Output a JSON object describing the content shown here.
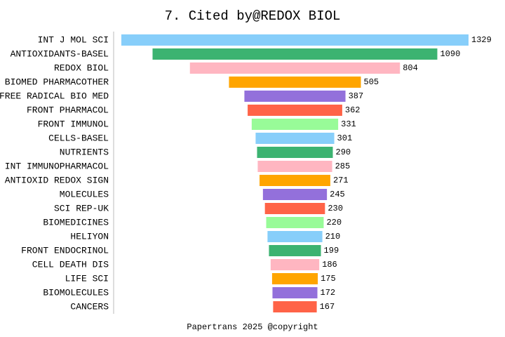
{
  "chart_data": {
    "type": "bar",
    "orientation": "horizontal",
    "align": "center",
    "title": "7. Cited by@REDOX BIOL",
    "footer": "Papertrans 2025 @copyright",
    "categories": [
      "INT J MOL SCI",
      "ANTIOXIDANTS-BASEL",
      "REDOX BIOL",
      "BIOMED PHARMACOTHER",
      "FREE RADICAL BIO MED",
      "FRONT PHARMACOL",
      "FRONT IMMUNOL",
      "CELLS-BASEL",
      "NUTRIENTS",
      "INT IMMUNOPHARMACOL",
      "ANTIOXID REDOX SIGN",
      "MOLECULES",
      "SCI REP-UK",
      "BIOMEDICINES",
      "HELIYON",
      "FRONT ENDOCRINOL",
      "CELL DEATH DIS",
      "LIFE SCI",
      "BIOMOLECULES",
      "CANCERS"
    ],
    "values": [
      1329,
      1090,
      804,
      505,
      387,
      362,
      331,
      301,
      290,
      285,
      271,
      245,
      230,
      220,
      210,
      199,
      186,
      175,
      172,
      167
    ],
    "colors": [
      "#87cefa",
      "#3cb371",
      "#ffb6c1",
      "#ffa500",
      "#9370db",
      "#ff6347",
      "#98fb98"
    ]
  }
}
